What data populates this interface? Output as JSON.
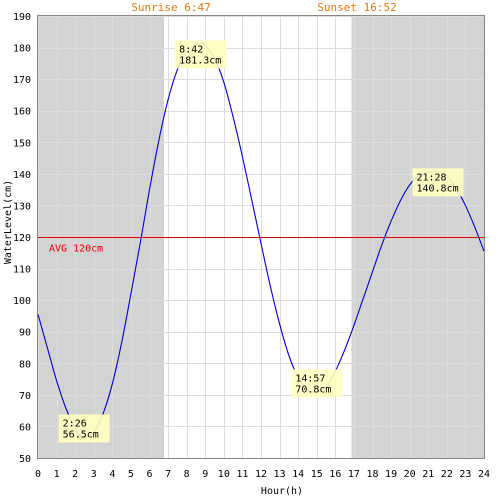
{
  "chart_data": {
    "type": "line",
    "title": "",
    "xlabel": "Hour(h)",
    "ylabel": "WaterLevel(cm)",
    "xlim": [
      0,
      24
    ],
    "ylim": [
      50,
      190
    ],
    "x_ticks": [
      "0",
      "1",
      "2",
      "3",
      "4",
      "5",
      "6",
      "7",
      "8",
      "9",
      "10",
      "11",
      "12",
      "13",
      "14",
      "15",
      "16",
      "17",
      "18",
      "19",
      "20",
      "21",
      "22",
      "23",
      "24"
    ],
    "y_ticks": [
      "50",
      "60",
      "70",
      "80",
      "90",
      "100",
      "110",
      "120",
      "130",
      "140",
      "150",
      "160",
      "170",
      "180",
      "190"
    ],
    "grid": true,
    "sunrise_label": "Sunrise 6:47",
    "sunset_label": "Sunset 16:52",
    "sunrise_hour": 6.78,
    "sunset_hour": 16.87,
    "night_shading_color": "#d3d3d3",
    "line_color": "#0000cc",
    "avg_line_color": "#e00000",
    "avg": {
      "value": 120,
      "label": "AVG 120cm"
    },
    "series": [
      {
        "x": [
          0,
          0.5,
          1,
          1.5,
          2,
          2.43,
          3,
          3.5,
          4,
          4.5,
          5,
          5.5,
          6,
          6.5,
          7,
          7.5,
          8,
          8.7,
          9,
          9.5,
          10,
          10.5,
          11,
          11.5,
          12,
          12.5,
          13,
          13.5,
          14,
          14.5,
          14.95,
          15.5,
          16,
          16.5,
          17,
          17.5,
          18,
          18.5,
          19,
          19.5,
          20,
          20.5,
          21,
          21.47,
          22,
          22.5,
          23,
          23.5,
          24
        ],
        "y": [
          95.5,
          85,
          74.5,
          65.8,
          59.5,
          56.5,
          58.2,
          64,
          73.5,
          86.5,
          102,
          118,
          135,
          150.5,
          163.5,
          173,
          178.8,
          181.3,
          180.6,
          176.6,
          169,
          158,
          145.5,
          131.8,
          118,
          104.5,
          92.5,
          82.5,
          75.5,
          71.5,
          70.8,
          72.5,
          77.5,
          84.2,
          92,
          100.5,
          109,
          117.5,
          125,
          131.5,
          136.5,
          139.6,
          140.6,
          140.8,
          139.2,
          135.5,
          130,
          123.2,
          115.5
        ]
      }
    ],
    "annotations": [
      {
        "time": "2:26",
        "level": "56.5cm",
        "x": 2.43,
        "y": 56.5,
        "type": "low"
      },
      {
        "time": "8:42",
        "level": "181.3cm",
        "x": 8.7,
        "y": 181.3,
        "type": "high"
      },
      {
        "time": "14:57",
        "level": "70.8cm",
        "x": 14.95,
        "y": 70.8,
        "type": "low"
      },
      {
        "time": "21:28",
        "level": "140.8cm",
        "x": 21.47,
        "y": 140.8,
        "type": "high"
      }
    ]
  }
}
